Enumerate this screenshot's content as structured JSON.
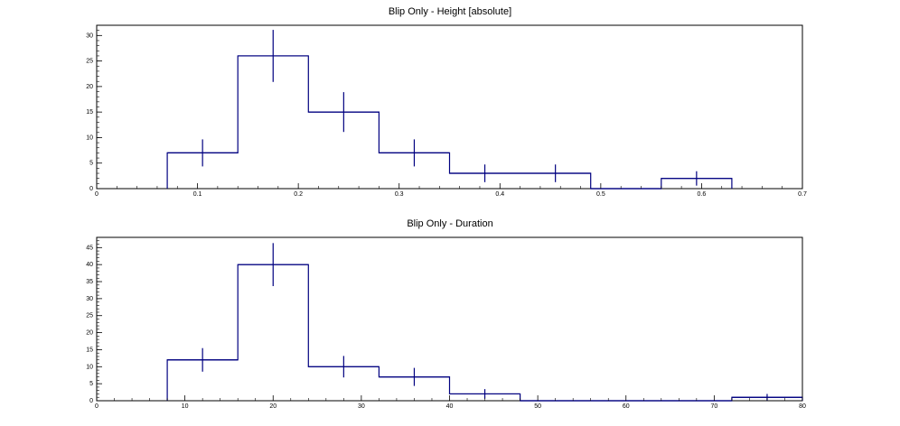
{
  "colors": {
    "histogram_line": "#000080",
    "error_bar": "#000080",
    "axis": "#000000",
    "background": "#ffffff"
  },
  "chart_data": [
    {
      "type": "bar",
      "style": "histogram-step-with-error-bars",
      "title": "Blip Only - Height [absolute]",
      "xlabel": "",
      "ylabel": "",
      "xlim": [
        0,
        0.7
      ],
      "ylim": [
        0,
        32
      ],
      "grid": false,
      "x_ticks": [
        0,
        0.1,
        0.2,
        0.3,
        0.4,
        0.5,
        0.6,
        0.7
      ],
      "x_tick_labels": [
        "0",
        "0.1",
        "0.2",
        "0.3",
        "0.4",
        "0.5",
        "0.6",
        "0.7"
      ],
      "y_ticks": [
        0,
        5,
        10,
        15,
        20,
        25,
        30
      ],
      "y_tick_labels": [
        "0",
        "5",
        "10",
        "15",
        "20",
        "25",
        "30"
      ],
      "bins": [
        {
          "x_low": 0.07,
          "x_high": 0.14,
          "value": 7,
          "error_x": 0.105,
          "error_low": 4.35,
          "error_high": 9.65
        },
        {
          "x_low": 0.14,
          "x_high": 0.21,
          "value": 26,
          "error_x": 0.175,
          "error_low": 20.9,
          "error_high": 31.1
        },
        {
          "x_low": 0.21,
          "x_high": 0.28,
          "value": 15,
          "error_x": 0.245,
          "error_low": 11.1,
          "error_high": 18.9
        },
        {
          "x_low": 0.28,
          "x_high": 0.35,
          "value": 7,
          "error_x": 0.315,
          "error_low": 4.35,
          "error_high": 9.65
        },
        {
          "x_low": 0.35,
          "x_high": 0.42,
          "value": 3,
          "error_x": 0.385,
          "error_low": 1.27,
          "error_high": 4.73
        },
        {
          "x_low": 0.42,
          "x_high": 0.49,
          "value": 3,
          "error_x": 0.455,
          "error_low": 1.27,
          "error_high": 4.73
        },
        {
          "x_low": 0.49,
          "x_high": 0.56,
          "value": 0
        },
        {
          "x_low": 0.56,
          "x_high": 0.63,
          "value": 2,
          "error_x": 0.595,
          "error_low": 0.59,
          "error_high": 3.41
        }
      ]
    },
    {
      "type": "bar",
      "style": "histogram-step-with-error-bars",
      "title": "Blip Only - Duration",
      "xlabel": "",
      "ylabel": "",
      "xlim": [
        0,
        80
      ],
      "ylim": [
        0,
        48
      ],
      "grid": false,
      "x_ticks": [
        0,
        10,
        20,
        30,
        40,
        50,
        60,
        70,
        80
      ],
      "x_tick_labels": [
        "0",
        "10",
        "20",
        "30",
        "40",
        "50",
        "60",
        "70",
        "80"
      ],
      "y_ticks": [
        0,
        5,
        10,
        15,
        20,
        25,
        30,
        35,
        40,
        45
      ],
      "y_tick_labels": [
        "0",
        "5",
        "10",
        "15",
        "20",
        "25",
        "30",
        "35",
        "40",
        "45"
      ],
      "bins": [
        {
          "x_low": 8,
          "x_high": 16,
          "value": 12,
          "error_x": 12,
          "error_low": 8.54,
          "error_high": 15.46
        },
        {
          "x_low": 16,
          "x_high": 24,
          "value": 40,
          "error_x": 20,
          "error_low": 33.68,
          "error_high": 46.32
        },
        {
          "x_low": 24,
          "x_high": 32,
          "value": 10,
          "error_x": 28,
          "error_low": 6.84,
          "error_high": 13.16
        },
        {
          "x_low": 32,
          "x_high": 40,
          "value": 7,
          "error_x": 36,
          "error_low": 4.35,
          "error_high": 9.65
        },
        {
          "x_low": 40,
          "x_high": 48,
          "value": 2,
          "error_x": 44,
          "error_low": 0.59,
          "error_high": 3.41
        },
        {
          "x_low": 48,
          "x_high": 72,
          "value": 0
        },
        {
          "x_low": 72,
          "x_high": 80,
          "value": 1,
          "error_x": 76,
          "error_low": 0,
          "error_high": 2
        }
      ]
    }
  ]
}
